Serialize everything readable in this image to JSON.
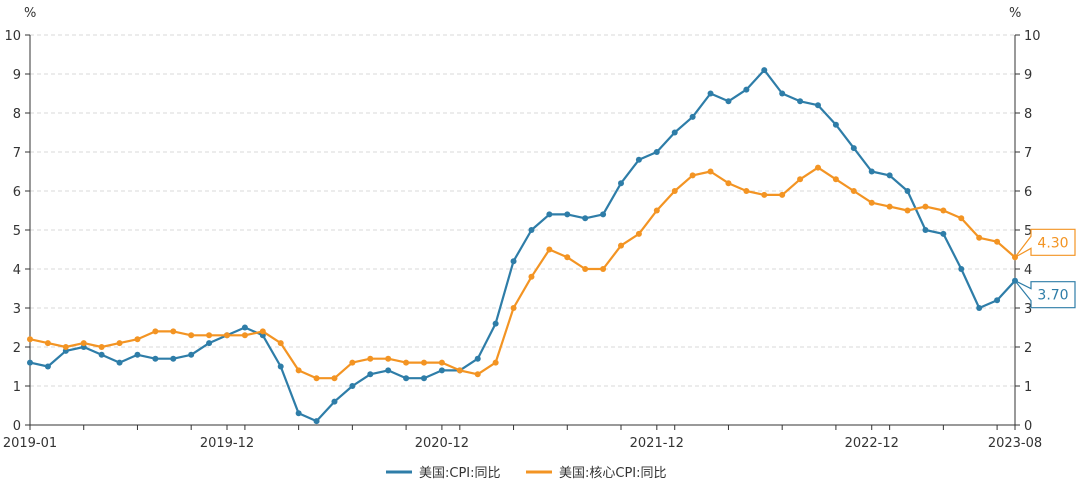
{
  "chart_data": {
    "type": "line",
    "unit_left": "%",
    "unit_right": "%",
    "ylim": [
      0,
      10
    ],
    "yticks": [
      0,
      1,
      2,
      3,
      4,
      5,
      6,
      7,
      8,
      9,
      10
    ],
    "x": [
      "2019-01",
      "2019-02",
      "2019-03",
      "2019-04",
      "2019-05",
      "2019-06",
      "2019-07",
      "2019-08",
      "2019-09",
      "2019-10",
      "2019-11",
      "2019-12",
      "2020-01",
      "2020-02",
      "2020-03",
      "2020-04",
      "2020-05",
      "2020-06",
      "2020-07",
      "2020-08",
      "2020-09",
      "2020-10",
      "2020-11",
      "2020-12",
      "2021-01",
      "2021-02",
      "2021-03",
      "2021-04",
      "2021-05",
      "2021-06",
      "2021-07",
      "2021-08",
      "2021-09",
      "2021-10",
      "2021-11",
      "2021-12",
      "2022-01",
      "2022-02",
      "2022-03",
      "2022-04",
      "2022-05",
      "2022-06",
      "2022-07",
      "2022-08",
      "2022-09",
      "2022-10",
      "2022-11",
      "2022-12",
      "2023-01",
      "2023-02",
      "2023-03",
      "2023-04",
      "2023-05",
      "2023-06",
      "2023-07",
      "2023-08"
    ],
    "xtick_labels": [
      "2019-01",
      "2019-12",
      "2020-12",
      "2021-12",
      "2022-12",
      "2023-08"
    ],
    "grid": true,
    "legend_position": "bottom",
    "series": [
      {
        "name": "美国:CPI:同比",
        "color": "#2E7DA8",
        "values": [
          1.6,
          1.5,
          1.9,
          2.0,
          1.8,
          1.6,
          1.8,
          1.7,
          1.7,
          1.8,
          2.1,
          2.3,
          2.5,
          2.3,
          1.5,
          0.3,
          0.1,
          0.6,
          1.0,
          1.3,
          1.4,
          1.2,
          1.2,
          1.4,
          1.4,
          1.7,
          2.6,
          4.2,
          5.0,
          5.4,
          5.4,
          5.3,
          5.4,
          6.2,
          6.8,
          7.0,
          7.5,
          7.9,
          8.5,
          8.3,
          8.6,
          9.1,
          8.5,
          8.3,
          8.2,
          7.7,
          7.1,
          6.5,
          6.4,
          6.0,
          5.0,
          4.9,
          4.0,
          3.0,
          3.2,
          3.7
        ],
        "last_label": "3.70"
      },
      {
        "name": "美国:核心CPI:同比",
        "color": "#F39423",
        "values": [
          2.2,
          2.1,
          2.0,
          2.1,
          2.0,
          2.1,
          2.2,
          2.4,
          2.4,
          2.3,
          2.3,
          2.3,
          2.3,
          2.4,
          2.1,
          1.4,
          1.2,
          1.2,
          1.6,
          1.7,
          1.7,
          1.6,
          1.6,
          1.6,
          1.4,
          1.3,
          1.6,
          3.0,
          3.8,
          4.5,
          4.3,
          4.0,
          4.0,
          4.6,
          4.9,
          5.5,
          6.0,
          6.4,
          6.5,
          6.2,
          6.0,
          5.9,
          5.9,
          6.3,
          6.6,
          6.3,
          6.0,
          5.7,
          5.6,
          5.5,
          5.6,
          5.5,
          5.3,
          4.8,
          4.7,
          4.3
        ],
        "last_label": "4.30"
      }
    ]
  }
}
